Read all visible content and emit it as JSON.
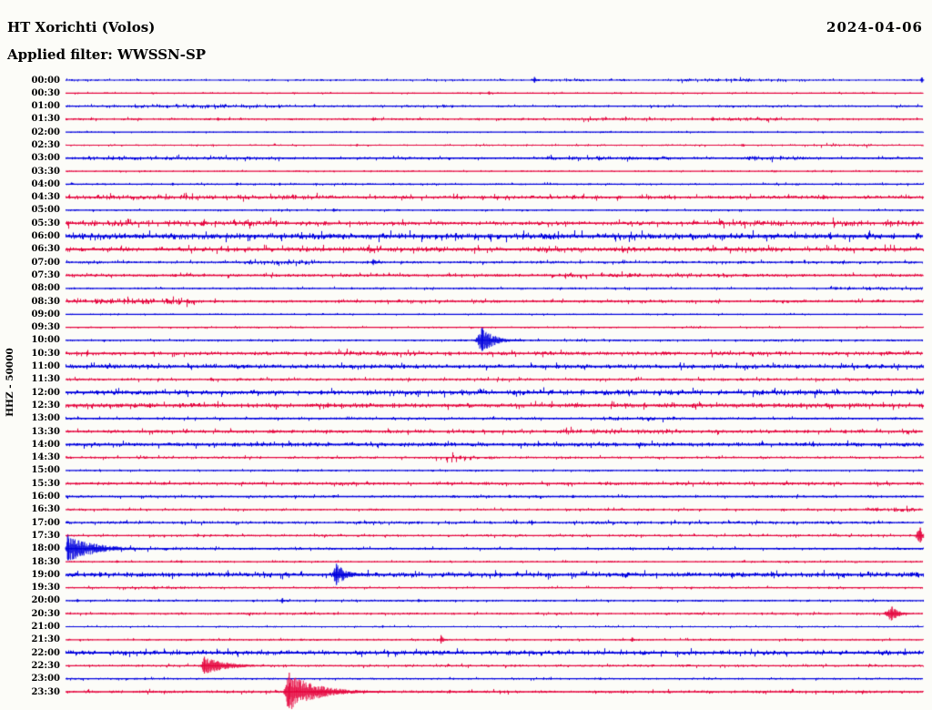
{
  "header": {
    "station_title": "HT Xorichti (Volos)",
    "filter_label": "Applied filter: WWSSN-SP",
    "date": "2024-04-06"
  },
  "axis": {
    "y_label": "HHZ - 50000",
    "row_interval_label": "30 minutes per line",
    "first_row": "00:00",
    "last_row": "23:30"
  },
  "colors": {
    "trace_blue": "#0000de",
    "trace_red": "#e5073f",
    "text": "#000000",
    "background": "#fcfcf8"
  },
  "chart_data": {
    "type": "line",
    "subtype": "helicorder-dayplot",
    "title": "HT Xorichti (Volos)",
    "date": "2024-04-06",
    "filter": "WWSSN-SP",
    "channel_scale_label": "HHZ - 50000",
    "minutes_per_row": 30,
    "rows": [
      {
        "time": "00:00",
        "color": "blue",
        "noise": 0.35,
        "bursts": [
          [
            0.56,
            0.61,
            1.6
          ],
          [
            0.71,
            0.84,
            1.8
          ]
        ],
        "events": [
          {
            "pos": 0.547,
            "amp": 3.5,
            "w": 1.5,
            "coda": 3
          },
          {
            "pos": 0.999,
            "amp": 3,
            "w": 1.5,
            "coda": 2
          }
        ]
      },
      {
        "time": "00:30",
        "color": "red",
        "noise": 0.3,
        "bursts": [],
        "events": [
          {
            "pos": 0.494,
            "amp": 2,
            "w": 1.5,
            "coda": 2
          }
        ]
      },
      {
        "time": "01:00",
        "color": "blue",
        "noise": 0.45,
        "bursts": [
          [
            0.08,
            0.27,
            1.8
          ]
        ],
        "events": []
      },
      {
        "time": "01:30",
        "color": "red",
        "noise": 0.45,
        "bursts": [
          [
            0.58,
            0.7,
            1.5
          ],
          [
            0.76,
            0.83,
            1.6
          ]
        ],
        "events": [
          {
            "pos": 0.178,
            "amp": 2,
            "w": 1.5,
            "coda": 2
          },
          {
            "pos": 0.359,
            "amp": 2.2,
            "w": 1.5,
            "coda": 2
          },
          {
            "pos": 0.755,
            "amp": 2.5,
            "w": 1.5,
            "coda": 2
          }
        ]
      },
      {
        "time": "02:00",
        "color": "blue",
        "noise": 0.3,
        "bursts": [],
        "events": []
      },
      {
        "time": "02:30",
        "color": "red",
        "noise": 0.35,
        "bursts": [
          [
            0.86,
            0.94,
            1.6
          ]
        ],
        "events": [
          {
            "pos": 0.34,
            "amp": 1.6,
            "w": 1.5,
            "coda": 2
          },
          {
            "pos": 0.79,
            "amp": 1.6,
            "w": 1.5,
            "coda": 2
          }
        ]
      },
      {
        "time": "03:00",
        "color": "blue",
        "noise": 0.5,
        "bursts": [
          [
            0.02,
            0.25,
            1.6
          ],
          [
            0.56,
            0.72,
            1.6
          ],
          [
            0.79,
            0.86,
            1.7
          ]
        ],
        "events": []
      },
      {
        "time": "03:30",
        "color": "red",
        "noise": 0.3,
        "bursts": [],
        "events": []
      },
      {
        "time": "04:00",
        "color": "blue",
        "noise": 0.4,
        "bursts": [],
        "events": [
          {
            "pos": 0.125,
            "amp": 1.6,
            "w": 1.5,
            "coda": 2
          },
          {
            "pos": 0.2,
            "amp": 1.6,
            "w": 1.5,
            "coda": 2
          },
          {
            "pos": 0.25,
            "amp": 1.6,
            "w": 1.5,
            "coda": 2
          }
        ]
      },
      {
        "time": "04:30",
        "color": "red",
        "noise": 0.75,
        "bursts": [
          [
            0.0,
            0.3,
            1.3
          ]
        ],
        "events": [
          {
            "pos": 0.884,
            "amp": 2.6,
            "w": 2,
            "coda": 3
          }
        ]
      },
      {
        "time": "05:00",
        "color": "blue",
        "noise": 0.35,
        "bursts": [],
        "events": [
          {
            "pos": 0.313,
            "amp": 2,
            "w": 1.5,
            "coda": 2
          }
        ]
      },
      {
        "time": "05:30",
        "color": "red",
        "noise": 0.85,
        "bursts": [
          [
            0.0,
            0.25,
            1.5
          ],
          [
            0.74,
            1.0,
            1.4
          ]
        ],
        "events": []
      },
      {
        "time": "06:00",
        "color": "blue",
        "noise": 1.25,
        "bursts": [],
        "events": []
      },
      {
        "time": "06:30",
        "color": "red",
        "noise": 1.0,
        "bursts": [],
        "events": []
      },
      {
        "time": "07:00",
        "color": "blue",
        "noise": 0.55,
        "bursts": [
          [
            0.21,
            0.29,
            1.8
          ]
        ],
        "events": [
          {
            "pos": 0.359,
            "amp": 3.5,
            "w": 2,
            "coda": 4
          }
        ]
      },
      {
        "time": "07:30",
        "color": "red",
        "noise": 0.6,
        "bursts": [
          [
            0.58,
            0.78,
            1.5
          ]
        ],
        "events": []
      },
      {
        "time": "08:00",
        "color": "blue",
        "noise": 0.4,
        "bursts": [
          [
            0.89,
            1.0,
            2.0
          ]
        ],
        "events": []
      },
      {
        "time": "08:30",
        "color": "red",
        "noise": 0.6,
        "bursts": [
          [
            0.0,
            0.15,
            2.0
          ]
        ],
        "events": []
      },
      {
        "time": "09:00",
        "color": "blue",
        "noise": 0.3,
        "bursts": [],
        "events": []
      },
      {
        "time": "09:30",
        "color": "red",
        "noise": 0.35,
        "bursts": [],
        "events": []
      },
      {
        "time": "10:00",
        "color": "blue",
        "noise": 0.4,
        "bursts": [],
        "events": [
          {
            "pos": 0.486,
            "amp": 14,
            "w": 5,
            "coda": 14
          }
        ]
      },
      {
        "time": "10:30",
        "color": "red",
        "noise": 0.8,
        "bursts": [
          [
            0.3,
            0.45,
            1.3
          ]
        ],
        "events": []
      },
      {
        "time": "11:00",
        "color": "blue",
        "noise": 0.85,
        "bursts": [],
        "events": []
      },
      {
        "time": "11:30",
        "color": "red",
        "noise": 0.55,
        "bursts": [],
        "events": [
          {
            "pos": 0.17,
            "amp": 2,
            "w": 1.5,
            "coda": 2
          }
        ]
      },
      {
        "time": "12:00",
        "color": "blue",
        "noise": 0.95,
        "bursts": [
          [
            0.4,
            0.9,
            1.2
          ]
        ],
        "events": []
      },
      {
        "time": "12:30",
        "color": "red",
        "noise": 0.95,
        "bursts": [],
        "events": [
          {
            "pos": 0.306,
            "amp": 3,
            "w": 2,
            "coda": 3
          },
          {
            "pos": 0.858,
            "amp": 2.6,
            "w": 2,
            "coda": 2
          }
        ]
      },
      {
        "time": "13:00",
        "color": "blue",
        "noise": 0.5,
        "bursts": [
          [
            0.62,
            0.71,
            1.7
          ]
        ],
        "events": []
      },
      {
        "time": "13:30",
        "color": "red",
        "noise": 0.7,
        "bursts": [
          [
            0.58,
            0.72,
            1.5
          ]
        ],
        "events": [
          {
            "pos": 0.242,
            "amp": 2.4,
            "w": 2,
            "coda": 2
          }
        ]
      },
      {
        "time": "14:00",
        "color": "blue",
        "noise": 0.85,
        "bursts": [],
        "events": []
      },
      {
        "time": "14:30",
        "color": "red",
        "noise": 0.5,
        "bursts": [
          [
            0.43,
            0.48,
            2.2
          ]
        ],
        "events": []
      },
      {
        "time": "15:00",
        "color": "blue",
        "noise": 0.35,
        "bursts": [],
        "events": []
      },
      {
        "time": "15:30",
        "color": "red",
        "noise": 0.65,
        "bursts": [],
        "events": []
      },
      {
        "time": "16:00",
        "color": "blue",
        "noise": 0.5,
        "bursts": [],
        "events": [
          {
            "pos": 0.518,
            "amp": 1.8,
            "w": 1.5,
            "coda": 2
          },
          {
            "pos": 0.592,
            "amp": 1.8,
            "w": 1.5,
            "coda": 2
          }
        ]
      },
      {
        "time": "16:30",
        "color": "red",
        "noise": 0.45,
        "bursts": [
          [
            0.93,
            0.99,
            1.9
          ]
        ],
        "events": []
      },
      {
        "time": "17:00",
        "color": "blue",
        "noise": 0.6,
        "bursts": [],
        "events": [
          {
            "pos": 0.544,
            "amp": 2.6,
            "w": 1.5,
            "coda": 2
          }
        ]
      },
      {
        "time": "17:30",
        "color": "red",
        "noise": 0.5,
        "bursts": [],
        "events": [
          {
            "pos": 0.997,
            "amp": 9,
            "w": 4,
            "coda": 3
          }
        ]
      },
      {
        "time": "18:00",
        "color": "blue",
        "noise": 0.5,
        "bursts": [
          [
            0.03,
            0.14,
            1.5
          ]
        ],
        "events": [
          {
            "pos": 0.003,
            "amp": 15,
            "w": 2,
            "coda": 30
          }
        ]
      },
      {
        "time": "18:30",
        "color": "red",
        "noise": 0.35,
        "bursts": [],
        "events": [
          {
            "pos": 0.06,
            "amp": 1.5,
            "w": 1.5,
            "coda": 2
          },
          {
            "pos": 0.135,
            "amp": 1.5,
            "w": 1.5,
            "coda": 2
          }
        ]
      },
      {
        "time": "19:00",
        "color": "blue",
        "noise": 1.0,
        "bursts": [],
        "events": [
          {
            "pos": 0.316,
            "amp": 12,
            "w": 3,
            "coda": 12
          },
          {
            "pos": 0.778,
            "amp": 2.2,
            "w": 1.5,
            "coda": 2
          }
        ]
      },
      {
        "time": "19:30",
        "color": "red",
        "noise": 0.4,
        "bursts": [
          [
            0.06,
            0.14,
            1.8
          ]
        ],
        "events": []
      },
      {
        "time": "20:00",
        "color": "blue",
        "noise": 0.4,
        "bursts": [],
        "events": [
          {
            "pos": 0.014,
            "amp": 2,
            "w": 1.5,
            "coda": 2
          },
          {
            "pos": 0.253,
            "amp": 3,
            "w": 1.5,
            "coda": 2
          },
          {
            "pos": 0.412,
            "amp": 1.8,
            "w": 1.5,
            "coda": 2
          }
        ]
      },
      {
        "time": "20:30",
        "color": "red",
        "noise": 0.45,
        "bursts": [],
        "events": [
          {
            "pos": 0.964,
            "amp": 8,
            "w": 6,
            "coda": 8
          }
        ]
      },
      {
        "time": "21:00",
        "color": "blue",
        "noise": 0.35,
        "bursts": [],
        "events": [
          {
            "pos": 0.37,
            "amp": 1.5,
            "w": 1.5,
            "coda": 2
          }
        ]
      },
      {
        "time": "21:30",
        "color": "red",
        "noise": 0.4,
        "bursts": [],
        "events": [
          {
            "pos": 0.438,
            "amp": 5,
            "w": 1.2,
            "coda": 3
          },
          {
            "pos": 0.661,
            "amp": 2.6,
            "w": 1.5,
            "coda": 2
          }
        ]
      },
      {
        "time": "22:00",
        "color": "blue",
        "noise": 0.95,
        "bursts": [],
        "events": []
      },
      {
        "time": "22:30",
        "color": "red",
        "noise": 0.5,
        "bursts": [],
        "events": [
          {
            "pos": 0.162,
            "amp": 10,
            "w": 3,
            "coda": 25
          }
        ]
      },
      {
        "time": "23:00",
        "color": "blue",
        "noise": 0.4,
        "bursts": [],
        "events": [
          {
            "pos": 0.093,
            "amp": 1.5,
            "w": 1.5,
            "coda": 2
          },
          {
            "pos": 0.624,
            "amp": 1.5,
            "w": 1.5,
            "coda": 2
          }
        ]
      },
      {
        "time": "23:30",
        "color": "red",
        "noise": 0.6,
        "bursts": [],
        "events": [
          {
            "pos": 0.261,
            "amp": 21,
            "w": 4,
            "coda": 30
          }
        ]
      }
    ]
  }
}
